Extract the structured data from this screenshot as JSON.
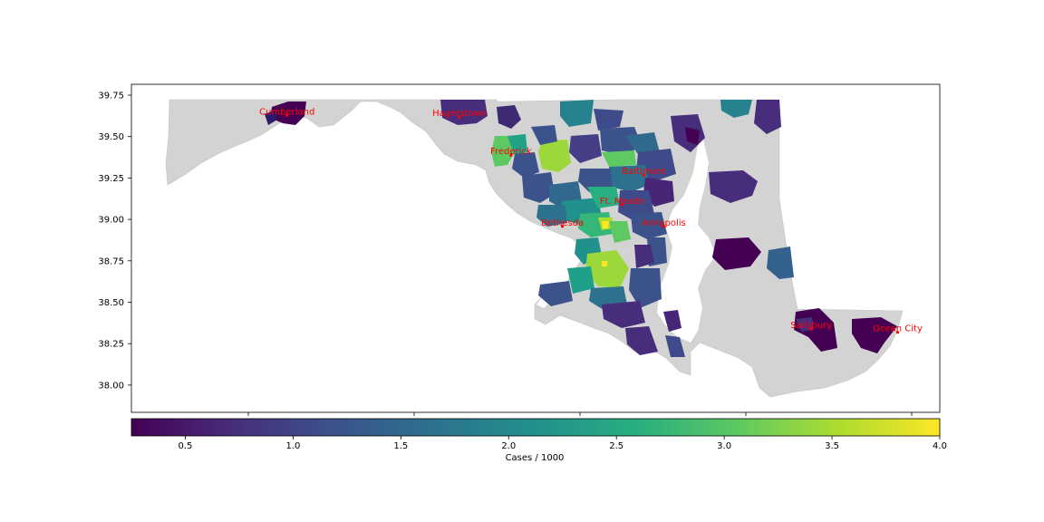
{
  "map": {
    "lat_ticks": [
      "39.75",
      "39.50",
      "39.25",
      "39.00",
      "38.75",
      "38.50",
      "38.25",
      "38.00"
    ],
    "land_color": "#d3d3d3",
    "city_color": "#ff0000",
    "cities": [
      {
        "name": "Cumberland",
        "lat": 39.65,
        "lon": -78.76
      },
      {
        "name": "Hagerstown",
        "lat": 39.64,
        "lon": -77.72
      },
      {
        "name": "Frederick",
        "lat": 39.41,
        "lon": -77.41
      },
      {
        "name": "Baltimore",
        "lat": 39.29,
        "lon": -76.61
      },
      {
        "name": "Ft. Meade",
        "lat": 39.11,
        "lon": -76.74
      },
      {
        "name": "Bethesda",
        "lat": 38.98,
        "lon": -77.1
      },
      {
        "name": "Annapolis",
        "lat": 38.98,
        "lon": -76.49
      },
      {
        "name": "Salisbury",
        "lat": 38.36,
        "lon": -75.6
      },
      {
        "name": "Ocean City",
        "lat": 38.34,
        "lon": -75.08
      }
    ]
  },
  "colorbar": {
    "label": "Cases / 1000",
    "ticks": [
      "0.5",
      "1.0",
      "1.5",
      "2.0",
      "2.5",
      "3.0",
      "3.5",
      "4.0"
    ],
    "range": [
      0.25,
      4.0
    ],
    "colormap": "viridis"
  }
}
